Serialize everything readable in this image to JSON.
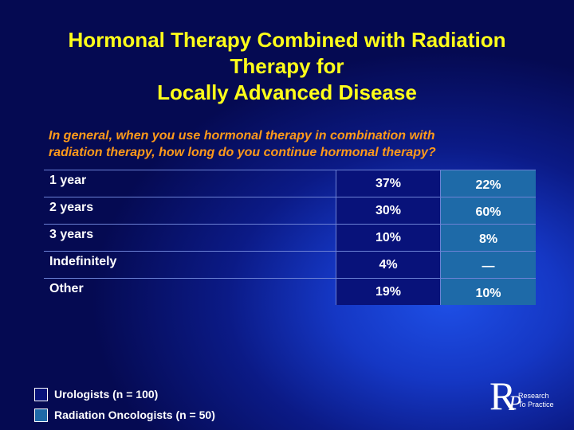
{
  "title": {
    "line1": "Hormonal Therapy Combined with Radiation",
    "line2": "Therapy for",
    "line3": "Locally Advanced Disease"
  },
  "question": {
    "line1": "In general, when you use hormonal therapy in combination with",
    "line2": "radiation therapy, how long do you continue hormonal therapy?"
  },
  "table": {
    "rows": [
      {
        "label": "1 year",
        "urologists": "37%",
        "radiation_oncologists": "22%"
      },
      {
        "label": "2 years",
        "urologists": "30%",
        "radiation_oncologists": "60%"
      },
      {
        "label": "3 years",
        "urologists": "10%",
        "radiation_oncologists": "8%"
      },
      {
        "label": "Indefinitely",
        "urologists": "4%",
        "radiation_oncologists": "—"
      },
      {
        "label": "Other",
        "urologists": "19%",
        "radiation_oncologists": "10%"
      }
    ]
  },
  "legend": {
    "urologists": "Urologists  (n = 100)",
    "radiation_oncologists": "Radiation Oncologists  (n = 50)"
  },
  "logo": {
    "letter_r": "R",
    "letter_p": "P",
    "text_line1": "Research",
    "text_line2": "To Practice"
  },
  "colors": {
    "title": "#ffff1a",
    "question": "#ff9a1a",
    "urologists_fill": "#08127a",
    "radiation_oncologists_fill": "#1e6aa8"
  }
}
